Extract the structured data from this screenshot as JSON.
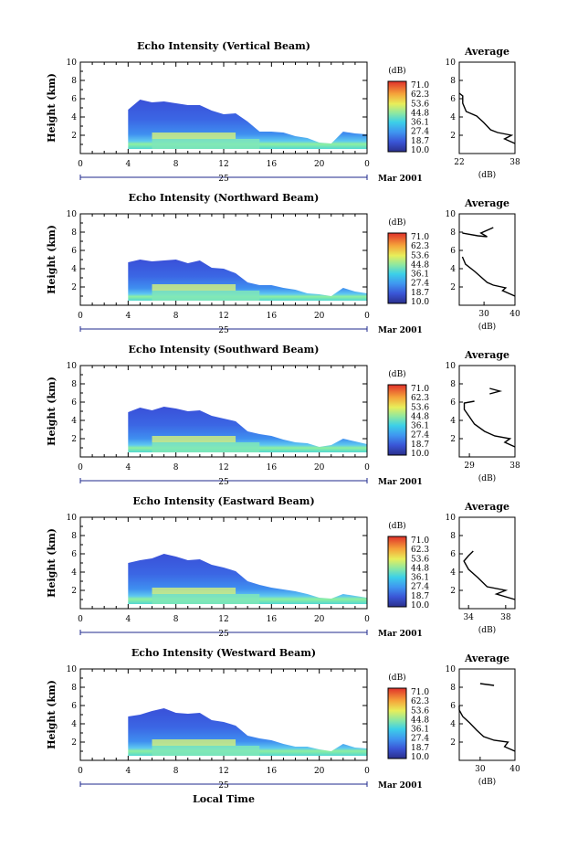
{
  "chart_data": [
    {
      "type": "heatmap",
      "title": "Echo Intensity (Vertical Beam)",
      "ylabel": "Height (km)",
      "xlim": [
        0,
        24
      ],
      "ylim": [
        0,
        10
      ],
      "xticks": [
        "0",
        "4",
        "8",
        "12",
        "16",
        "20",
        "0"
      ],
      "yticks": [
        "2",
        "4",
        "6",
        "8",
        "10"
      ],
      "date_label": "25",
      "month_label": "Mar 2001",
      "colorbar": {
        "unit": "(dB)",
        "labels": [
          "71.0",
          "62.3",
          "53.6",
          "44.8",
          "36.1",
          "27.4",
          "18.7",
          "10.0"
        ]
      },
      "echo_top_km": [
        [
          4,
          4.8
        ],
        [
          5,
          5.9
        ],
        [
          6,
          5.6
        ],
        [
          7,
          5.7
        ],
        [
          8,
          5.5
        ],
        [
          9,
          5.3
        ],
        [
          10,
          5.3
        ],
        [
          11,
          4.7
        ],
        [
          12,
          4.3
        ],
        [
          13,
          4.4
        ],
        [
          14,
          3.5
        ],
        [
          15,
          2.4
        ],
        [
          16,
          2.4
        ],
        [
          17,
          2.3
        ],
        [
          18,
          1.9
        ],
        [
          19,
          1.7
        ],
        [
          20,
          1.2
        ],
        [
          21,
          1.1
        ],
        [
          22,
          2.4
        ],
        [
          23,
          2.2
        ],
        [
          24,
          2.1
        ]
      ],
      "average": {
        "title": "Average",
        "xlabel": "(dB)",
        "xticks": [
          "22",
          "38"
        ],
        "xlim": [
          22,
          38
        ],
        "ylim": [
          0,
          10
        ],
        "yticks": [
          "2",
          "4",
          "6",
          "8",
          "10"
        ],
        "profile": [
          [
            38,
            1.1
          ],
          [
            35,
            1.6
          ],
          [
            37,
            2.0
          ],
          [
            33,
            2.3
          ],
          [
            31,
            2.6
          ],
          [
            29,
            3.4
          ],
          [
            27,
            4.1
          ],
          [
            24,
            4.6
          ],
          [
            23,
            5.5
          ],
          [
            23,
            6.3
          ],
          [
            22,
            6.6
          ]
        ],
        "extra": []
      }
    },
    {
      "type": "heatmap",
      "title": "Echo Intensity (Northward Beam)",
      "ylabel": "Height (km)",
      "xlim": [
        0,
        24
      ],
      "ylim": [
        0,
        10
      ],
      "xticks": [
        "0",
        "4",
        "8",
        "12",
        "16",
        "20",
        "0"
      ],
      "yticks": [
        "2",
        "4",
        "6",
        "8",
        "10"
      ],
      "date_label": "25",
      "month_label": "Mar 2001",
      "colorbar": {
        "unit": "(dB)",
        "labels": [
          "71.0",
          "62.3",
          "53.6",
          "44.8",
          "36.1",
          "27.4",
          "18.7",
          "10.0"
        ]
      },
      "echo_top_km": [
        [
          4,
          4.7
        ],
        [
          5,
          5.0
        ],
        [
          6,
          4.8
        ],
        [
          7,
          4.9
        ],
        [
          8,
          5.0
        ],
        [
          9,
          4.6
        ],
        [
          10,
          4.9
        ],
        [
          11,
          4.1
        ],
        [
          12,
          4.0
        ],
        [
          13,
          3.5
        ],
        [
          14,
          2.5
        ],
        [
          15,
          2.2
        ],
        [
          16,
          2.2
        ],
        [
          17,
          1.9
        ],
        [
          18,
          1.7
        ],
        [
          19,
          1.3
        ],
        [
          20,
          1.2
        ],
        [
          21,
          1.0
        ],
        [
          22,
          1.9
        ],
        [
          23,
          1.5
        ],
        [
          24,
          1.3
        ]
      ],
      "average": {
        "title": "Average",
        "xlabel": "(dB)",
        "xticks": [
          "30",
          "40"
        ],
        "xlim": [
          22,
          40
        ],
        "ylim": [
          0,
          10
        ],
        "yticks": [
          "2",
          "4",
          "6",
          "8",
          "10"
        ],
        "profile": [
          [
            40,
            1.0
          ],
          [
            36,
            1.6
          ],
          [
            37,
            1.9
          ],
          [
            33,
            2.2
          ],
          [
            31,
            2.5
          ],
          [
            29,
            3.1
          ],
          [
            27,
            3.7
          ],
          [
            24,
            4.5
          ],
          [
            23,
            5.3
          ]
        ],
        "extra": [
          [
            23,
            7.9
          ],
          [
            28,
            7.6
          ],
          [
            31,
            7.5
          ],
          [
            29,
            7.9
          ],
          [
            33,
            8.5
          ]
        ]
      }
    },
    {
      "type": "heatmap",
      "title": "Echo Intensity (Southward Beam)",
      "ylabel": "Height (km)",
      "xlim": [
        0,
        24
      ],
      "ylim": [
        0,
        10
      ],
      "xticks": [
        "0",
        "4",
        "8",
        "12",
        "16",
        "20",
        "0"
      ],
      "yticks": [
        "2",
        "4",
        "6",
        "8",
        "10"
      ],
      "date_label": "25",
      "month_label": "Mar 2001",
      "colorbar": {
        "unit": "(dB)",
        "labels": [
          "71.0",
          "62.3",
          "53.6",
          "44.8",
          "36.1",
          "27.4",
          "18.7",
          "10.0"
        ]
      },
      "echo_top_km": [
        [
          4,
          4.9
        ],
        [
          5,
          5.4
        ],
        [
          6,
          5.1
        ],
        [
          7,
          5.5
        ],
        [
          8,
          5.3
        ],
        [
          9,
          5.0
        ],
        [
          10,
          5.1
        ],
        [
          11,
          4.5
        ],
        [
          12,
          4.2
        ],
        [
          13,
          3.9
        ],
        [
          14,
          2.8
        ],
        [
          15,
          2.5
        ],
        [
          16,
          2.3
        ],
        [
          17,
          1.9
        ],
        [
          18,
          1.6
        ],
        [
          19,
          1.5
        ],
        [
          20,
          1.1
        ],
        [
          21,
          1.3
        ],
        [
          22,
          2.0
        ],
        [
          23,
          1.7
        ],
        [
          24,
          1.4
        ]
      ],
      "average": {
        "title": "Average",
        "xlabel": "(dB)",
        "xticks": [
          "29",
          "38"
        ],
        "xlim": [
          27,
          38
        ],
        "ylim": [
          0,
          10
        ],
        "yticks": [
          "2",
          "4",
          "6",
          "8",
          "10"
        ],
        "profile": [
          [
            38,
            1.1
          ],
          [
            36,
            1.6
          ],
          [
            37,
            2.0
          ],
          [
            34,
            2.3
          ],
          [
            32,
            2.8
          ],
          [
            30,
            3.6
          ],
          [
            29,
            4.4
          ],
          [
            28,
            5.2
          ],
          [
            28,
            5.9
          ],
          [
            30,
            6.1
          ]
        ],
        "extra": [
          [
            33,
            6.9
          ],
          [
            35,
            7.2
          ],
          [
            33,
            7.5
          ]
        ]
      }
    },
    {
      "type": "heatmap",
      "title": "Echo Intensity (Eastward Beam)",
      "ylabel": "Height (km)",
      "xlim": [
        0,
        24
      ],
      "ylim": [
        0,
        10
      ],
      "xticks": [
        "0",
        "4",
        "8",
        "12",
        "16",
        "20",
        "0"
      ],
      "yticks": [
        "2",
        "4",
        "6",
        "8",
        "10"
      ],
      "date_label": "25",
      "month_label": "Mar 2001",
      "colorbar": {
        "unit": "(dB)",
        "labels": [
          "71.0",
          "62.3",
          "53.6",
          "44.8",
          "36.1",
          "27.4",
          "18.7",
          "10.0"
        ]
      },
      "echo_top_km": [
        [
          4,
          5.0
        ],
        [
          5,
          5.3
        ],
        [
          6,
          5.5
        ],
        [
          7,
          6.0
        ],
        [
          8,
          5.7
        ],
        [
          9,
          5.3
        ],
        [
          10,
          5.4
        ],
        [
          11,
          4.8
        ],
        [
          12,
          4.5
        ],
        [
          13,
          4.1
        ],
        [
          14,
          3.0
        ],
        [
          15,
          2.6
        ],
        [
          16,
          2.3
        ],
        [
          17,
          2.1
        ],
        [
          18,
          1.9
        ],
        [
          19,
          1.6
        ],
        [
          20,
          1.2
        ],
        [
          21,
          1.1
        ],
        [
          22,
          1.6
        ],
        [
          23,
          1.4
        ],
        [
          24,
          1.2
        ]
      ],
      "average": {
        "title": "Average",
        "xlabel": "(dB)",
        "xticks": [
          "34",
          "38"
        ],
        "xlim": [
          33,
          39
        ],
        "ylim": [
          0,
          10
        ],
        "yticks": [
          "2",
          "4",
          "6",
          "8",
          "10"
        ],
        "profile": [
          [
            39,
            1.0
          ],
          [
            37,
            1.6
          ],
          [
            38,
            2.0
          ],
          [
            36,
            2.4
          ],
          [
            35,
            3.4
          ],
          [
            34,
            4.3
          ],
          [
            33.5,
            5.2
          ],
          [
            34,
            5.8
          ],
          [
            34.5,
            6.3
          ]
        ],
        "extra": []
      }
    },
    {
      "type": "heatmap",
      "title": "Echo Intensity (Westward Beam)",
      "ylabel": "Height (km)",
      "xlim": [
        0,
        24
      ],
      "ylim": [
        0,
        10
      ],
      "xticks": [
        "0",
        "4",
        "8",
        "12",
        "16",
        "20",
        "0"
      ],
      "yticks": [
        "2",
        "4",
        "6",
        "8",
        "10"
      ],
      "date_label": "25",
      "month_label": "Mar 2001",
      "xlabel": "Local Time",
      "colorbar": {
        "unit": "(dB)",
        "labels": [
          "71.0",
          "62.3",
          "53.6",
          "44.8",
          "36.1",
          "27.4",
          "18.7",
          "10.0"
        ]
      },
      "echo_top_km": [
        [
          4,
          4.8
        ],
        [
          5,
          5.0
        ],
        [
          6,
          5.4
        ],
        [
          7,
          5.7
        ],
        [
          8,
          5.2
        ],
        [
          9,
          5.1
        ],
        [
          10,
          5.2
        ],
        [
          11,
          4.4
        ],
        [
          12,
          4.2
        ],
        [
          13,
          3.8
        ],
        [
          14,
          2.7
        ],
        [
          15,
          2.4
        ],
        [
          16,
          2.2
        ],
        [
          17,
          1.8
        ],
        [
          18,
          1.5
        ],
        [
          19,
          1.5
        ],
        [
          20,
          1.2
        ],
        [
          21,
          1.0
        ],
        [
          22,
          1.8
        ],
        [
          23,
          1.4
        ],
        [
          24,
          1.3
        ]
      ],
      "average": {
        "title": "Average",
        "xlabel": "(dB)",
        "xticks": [
          "30",
          "40"
        ],
        "xlim": [
          24,
          40
        ],
        "ylim": [
          0,
          10
        ],
        "yticks": [
          "2",
          "4",
          "6",
          "8",
          "10"
        ],
        "profile": [
          [
            40,
            1.0
          ],
          [
            37,
            1.5
          ],
          [
            38,
            2.0
          ],
          [
            34,
            2.2
          ],
          [
            31,
            2.6
          ],
          [
            29,
            3.3
          ],
          [
            27,
            4.1
          ],
          [
            25,
            4.8
          ],
          [
            24,
            5.5
          ],
          [
            24,
            6.0
          ]
        ],
        "extra": [
          [
            30,
            8.4
          ],
          [
            34,
            8.2
          ]
        ]
      }
    }
  ]
}
